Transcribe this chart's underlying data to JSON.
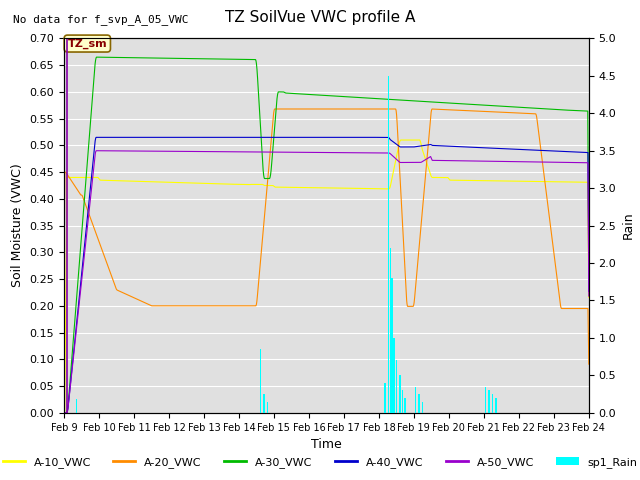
{
  "title": "TZ SoilVue VWC profile A",
  "top_left_text": "No data for f_svp_A_05_VWC",
  "annotation_text": "TZ_sm",
  "xlabel": "Time",
  "ylabel_left": "Soil Moisture (VWC)",
  "ylabel_right": "Rain",
  "ylim_left": [
    0.0,
    0.7
  ],
  "ylim_right": [
    0.0,
    5.0
  ],
  "yticks_left": [
    0.0,
    0.05,
    0.1,
    0.15,
    0.2,
    0.25,
    0.3,
    0.35,
    0.4,
    0.45,
    0.5,
    0.55,
    0.6,
    0.65,
    0.7
  ],
  "yticks_right": [
    0.0,
    0.5,
    1.0,
    1.5,
    2.0,
    2.5,
    3.0,
    3.5,
    4.0,
    4.5,
    5.0
  ],
  "x_tick_labels": [
    "Feb 9",
    "Feb 10",
    "Feb 11",
    "Feb 12",
    "Feb 13",
    "Feb 14",
    "Feb 15",
    "Feb 16",
    "Feb 17",
    "Feb 18",
    "Feb 19",
    "Feb 20",
    "Feb 21",
    "Feb 22",
    "Feb 23",
    "Feb 24"
  ],
  "colors": {
    "A10": "#ffff00",
    "A20": "#ff8c00",
    "A30": "#00bb00",
    "A40": "#0000cc",
    "A50": "#9900cc",
    "rain": "#00ffff",
    "bg": "#e0e0e0",
    "annotation_bg": "#ffffcc",
    "annotation_border": "#cc0000"
  },
  "legend_labels": [
    "A-10_VWC",
    "A-20_VWC",
    "A-30_VWC",
    "A-40_VWC",
    "A-50_VWC",
    "sp1_Rain"
  ],
  "legend_colors": [
    "#ffff00",
    "#ff8c00",
    "#00bb00",
    "#0000cc",
    "#9900cc",
    "#00ffff"
  ]
}
